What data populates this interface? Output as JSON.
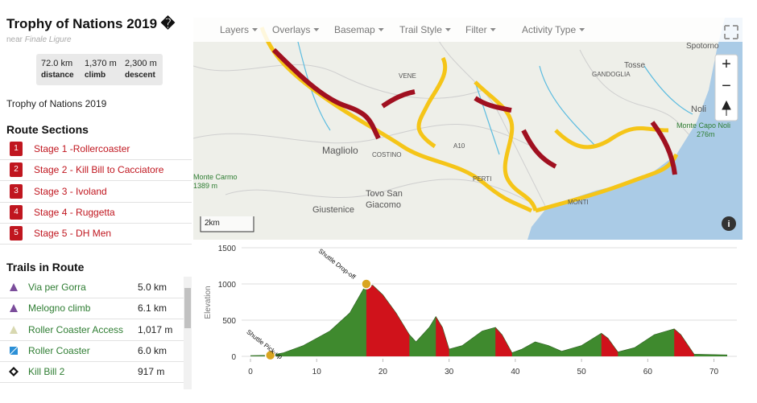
{
  "header": {
    "title": "Trophy of Nations 2019 �",
    "near": "near",
    "location": "Finale Ligure"
  },
  "stats": [
    {
      "value": "72.0 km",
      "label": "distance"
    },
    {
      "value": "1,370 m",
      "label": "climb"
    },
    {
      "value": "2,300 m",
      "label": "descent"
    }
  ],
  "description": "Trophy of Nations 2019",
  "sections": {
    "title": "Route Sections",
    "items": [
      {
        "number": "1",
        "label": "Stage 1 -Rollercoaster"
      },
      {
        "number": "2",
        "label": "Stage 2 - Kill Bill to Cacciatore"
      },
      {
        "number": "3",
        "label": "Stage 3 - Ivoland"
      },
      {
        "number": "4",
        "label": "Stage 4 - Ruggetta"
      },
      {
        "number": "5",
        "label": "Stage 5 - DH Men"
      }
    ]
  },
  "trails": {
    "title": "Trails in Route",
    "items": [
      {
        "name": "Via per Gorra",
        "distance": "5.0 km"
      },
      {
        "name": "Melogno climb",
        "distance": "6.1 km"
      },
      {
        "name": "Roller Coaster Access",
        "distance": "1,017 m"
      },
      {
        "name": "Roller Coaster",
        "distance": "6.0 km"
      },
      {
        "name": "Kill Bill 2",
        "distance": "917 m"
      }
    ]
  },
  "map": {
    "toolbar": [
      "Layers",
      "Overlays",
      "Basemap",
      "Trail Style",
      "Filter",
      "Activity Type"
    ],
    "places": [
      "Tosse",
      "Spotorno",
      "GANDOGLIA",
      "VENE",
      "Noli",
      "Monte Capo Noli",
      "276m",
      "Magliolo",
      "COSTINO",
      "A10",
      "PERTI",
      "Tovo San",
      "Giacomo",
      "Giustenice",
      "Monte Carmo",
      "1389 m",
      "MONTI"
    ],
    "scale": "2km"
  },
  "elevation": {
    "type": "area",
    "y_label": "Elevation",
    "x": [
      0,
      3,
      5,
      8,
      12,
      15,
      17.5,
      18.5,
      20,
      22,
      24,
      25,
      27,
      28,
      29,
      30,
      32,
      35,
      37,
      38,
      39.5,
      41,
      43,
      45,
      47,
      50,
      53,
      54,
      55.5,
      58,
      61,
      64,
      65,
      67,
      72
    ],
    "values": [
      10,
      15,
      50,
      150,
      350,
      600,
      1000,
      980,
      850,
      600,
      300,
      200,
      400,
      550,
      400,
      100,
      150,
      350,
      400,
      300,
      50,
      100,
      200,
      150,
      70,
      150,
      320,
      250,
      60,
      120,
      300,
      380,
      300,
      30,
      20
    ],
    "color": "#3f8a2e",
    "descent_color": "#d0121b",
    "descents": [
      [
        17.5,
        24
      ],
      [
        28,
        30
      ],
      [
        37,
        39.5
      ],
      [
        53,
        55.5
      ],
      [
        64,
        67
      ]
    ],
    "annotations": [
      {
        "x": 3,
        "y": 15,
        "text": "Shuttle Pick-up"
      },
      {
        "x": 17.5,
        "y": 1000,
        "text": "Shuttle Drop-off"
      }
    ],
    "xlim": [
      0,
      72
    ],
    "ylim": [
      0,
      1500
    ],
    "xticks": [
      0,
      10,
      20,
      30,
      40,
      50,
      60,
      70
    ],
    "yticks": [
      0,
      500,
      1000,
      1500
    ],
    "grid": true
  }
}
